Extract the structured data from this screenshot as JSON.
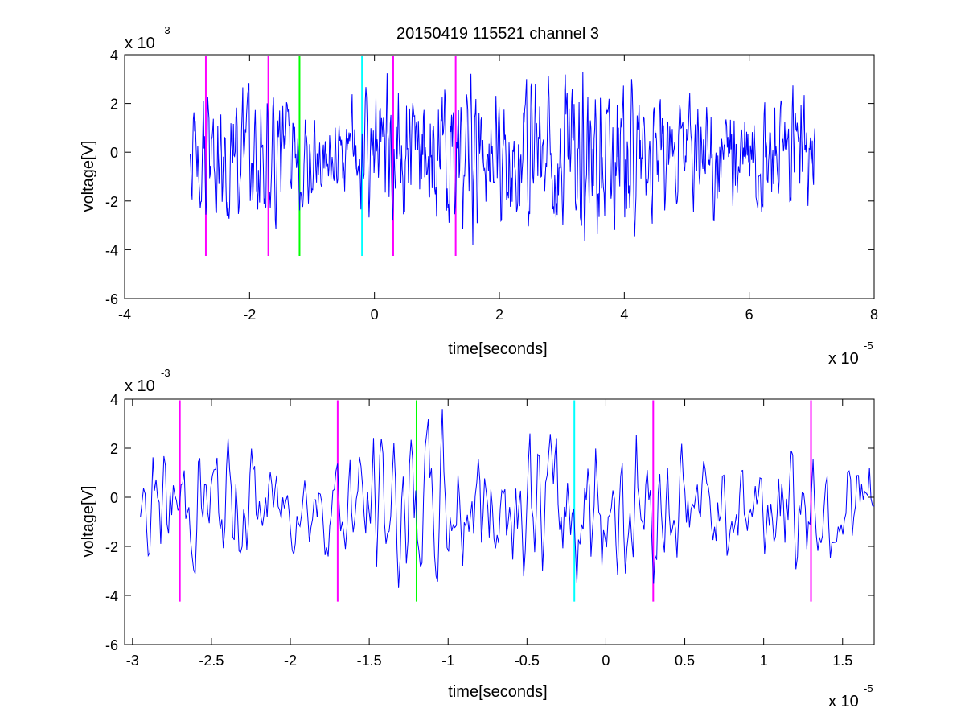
{
  "chart_data": [
    {
      "type": "line",
      "title": "20150419 115521 channel 3",
      "xlabel": "time[seconds]",
      "ylabel": "voltage[V]",
      "x_multiplier": "x 10",
      "x_exponent": "-5",
      "y_multiplier": "x 10",
      "y_exponent": "-3",
      "xlim": [
        -4,
        8
      ],
      "ylim": [
        -6,
        4
      ],
      "xticks": [
        -4,
        -2,
        0,
        2,
        4,
        6,
        8
      ],
      "xtick_labels": [
        "-4",
        "-2",
        "0",
        "2",
        "4",
        "6",
        "8"
      ],
      "yticks": [
        -6,
        -4,
        -2,
        0,
        2,
        4
      ],
      "ytick_labels": [
        "-6",
        "-4",
        "-2",
        "0",
        "2",
        "4"
      ],
      "grid": false,
      "series": [
        {
          "color": "#0000ff",
          "x_range": [
            -2.95,
            7.05
          ],
          "samples": 1000,
          "y_envelope": [
            -3.8,
            3.3
          ]
        }
      ],
      "markers": [
        {
          "x": -2.7,
          "color": "#ff00ff",
          "y_range": [
            -4.25,
            3.95
          ]
        },
        {
          "x": -1.7,
          "color": "#ff00ff",
          "y_range": [
            -4.25,
            3.95
          ]
        },
        {
          "x": -1.2,
          "color": "#00ff00",
          "y_range": [
            -4.25,
            3.95
          ]
        },
        {
          "x": -0.2,
          "color": "#00ffff",
          "y_range": [
            -4.25,
            3.95
          ]
        },
        {
          "x": 0.3,
          "color": "#ff00ff",
          "y_range": [
            -4.25,
            3.95
          ]
        },
        {
          "x": 1.3,
          "color": "#ff00ff",
          "y_range": [
            -4.25,
            3.95
          ]
        }
      ]
    },
    {
      "type": "line",
      "title": "",
      "xlabel": "time[seconds]",
      "ylabel": "voltage[V]",
      "x_multiplier": "x 10",
      "x_exponent": "-5",
      "y_multiplier": "x 10",
      "y_exponent": "-3",
      "xlim": [
        -3.05,
        1.7
      ],
      "ylim": [
        -6,
        4
      ],
      "xticks": [
        -3,
        -2.5,
        -2,
        -1.5,
        -1,
        -0.5,
        0,
        0.5,
        1,
        1.5
      ],
      "xtick_labels": [
        "-3",
        "-2.5",
        "-2",
        "-1.5",
        "-1",
        "-0.5",
        "0",
        "0.5",
        "1",
        "1.5"
      ],
      "yticks": [
        -6,
        -4,
        -2,
        0,
        2,
        4
      ],
      "ytick_labels": [
        "-6",
        "-4",
        "-2",
        "0",
        "2",
        "4"
      ],
      "grid": false,
      "series": [
        {
          "color": "#0000ff",
          "x_range": [
            -2.95,
            1.7
          ],
          "samples": 470,
          "y_envelope": [
            -3.7,
            3.6
          ]
        }
      ],
      "markers": [
        {
          "x": -2.7,
          "color": "#ff00ff",
          "y_range": [
            -4.25,
            3.95
          ]
        },
        {
          "x": -1.7,
          "color": "#ff00ff",
          "y_range": [
            -4.25,
            3.95
          ]
        },
        {
          "x": -1.2,
          "color": "#00ff00",
          "y_range": [
            -4.25,
            3.95
          ]
        },
        {
          "x": -0.2,
          "color": "#00ffff",
          "y_range": [
            -4.25,
            3.95
          ]
        },
        {
          "x": 0.3,
          "color": "#ff00ff",
          "y_range": [
            -4.25,
            3.95
          ]
        },
        {
          "x": 1.3,
          "color": "#ff00ff",
          "y_range": [
            -4.25,
            3.95
          ]
        }
      ]
    }
  ]
}
